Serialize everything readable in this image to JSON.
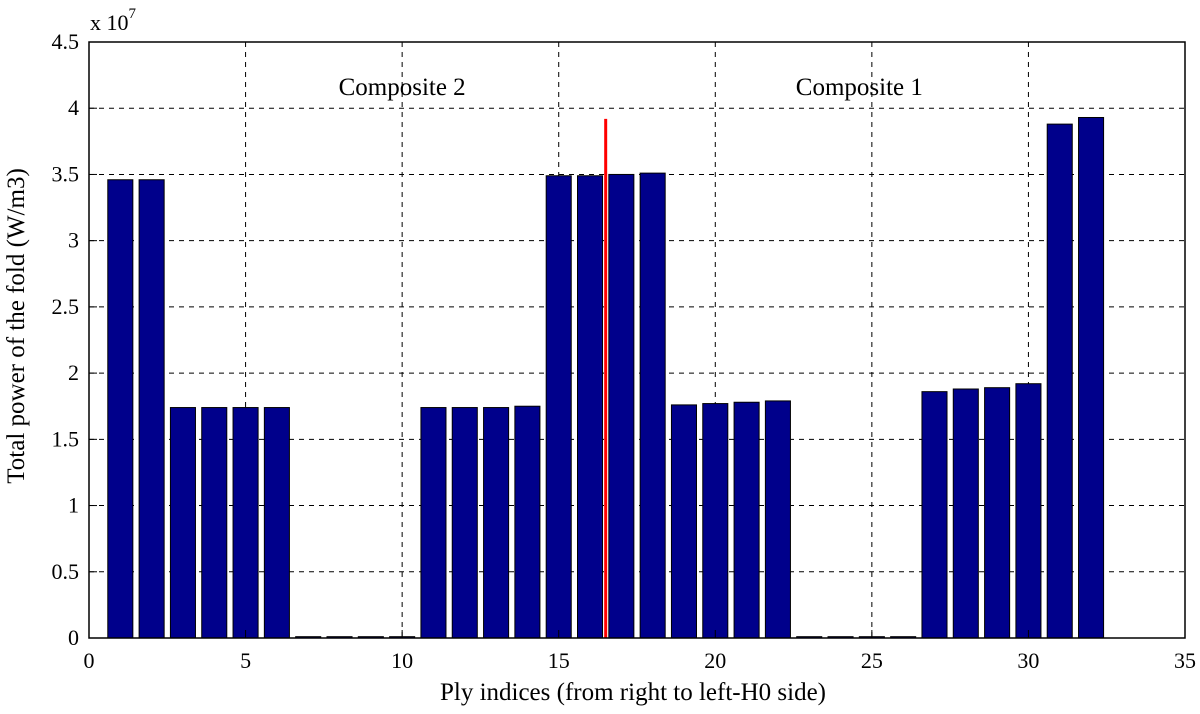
{
  "chart_data": {
    "type": "bar",
    "title": "",
    "xlabel": "Ply indices (from right to left-H0 side)",
    "ylabel": "Total power of the fold (W/m3)",
    "y_multiplier": "x 10",
    "y_exponent": "7",
    "xlim": [
      0,
      35
    ],
    "ylim": [
      0,
      4.5
    ],
    "xticks": [
      0,
      5,
      10,
      15,
      20,
      25,
      30,
      35
    ],
    "yticks": [
      0,
      0.5,
      1,
      1.5,
      2,
      2.5,
      3,
      3.5,
      4,
      4.5
    ],
    "grid": true,
    "bar_color": "#00008b",
    "x": [
      1,
      2,
      3,
      4,
      5,
      6,
      7,
      8,
      9,
      10,
      11,
      12,
      13,
      14,
      15,
      16,
      17,
      18,
      19,
      20,
      21,
      22,
      23,
      24,
      25,
      26,
      27,
      28,
      29,
      30,
      31,
      32
    ],
    "values": [
      3.46,
      3.46,
      1.74,
      1.74,
      1.74,
      1.74,
      0.01,
      0.01,
      0.01,
      0.01,
      1.74,
      1.74,
      1.74,
      1.75,
      3.49,
      3.49,
      3.5,
      3.51,
      1.76,
      1.77,
      1.78,
      1.79,
      0.01,
      0.01,
      0.01,
      0.01,
      1.86,
      1.88,
      1.89,
      1.92,
      3.88,
      3.93
    ],
    "divider": {
      "x": 16.5,
      "y_top": 3.92,
      "color": "#ff0000"
    },
    "annotations": [
      {
        "text": "Composite 2",
        "x": 10.0,
        "y": 4.1
      },
      {
        "text": "Composite 1",
        "x": 24.6,
        "y": 4.1
      }
    ]
  }
}
